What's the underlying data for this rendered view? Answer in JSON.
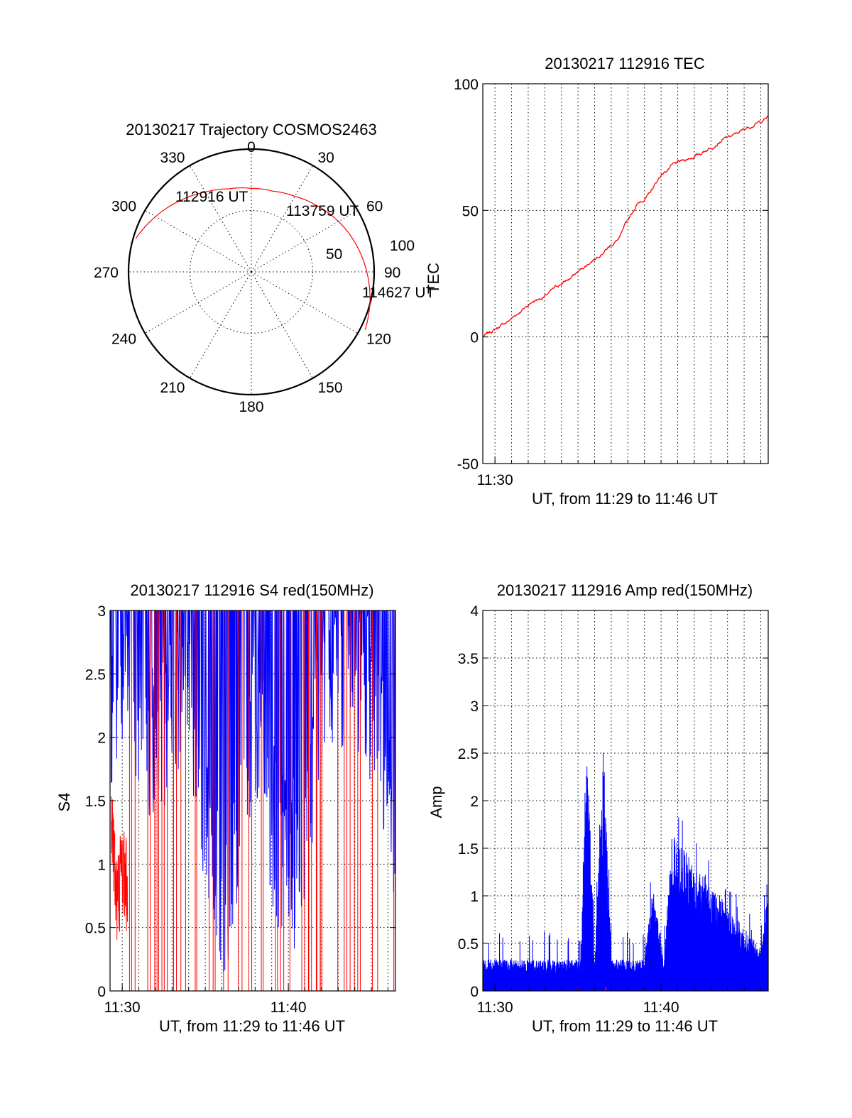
{
  "chart_data": [
    {
      "type": "polar",
      "title": "20130217 Trajectory COSMOS2463",
      "angle_labels": [
        "0",
        "30",
        "60",
        "90",
        "120",
        "150",
        "180",
        "210",
        "240",
        "270",
        "300",
        "330"
      ],
      "radial_labels": [
        "50",
        "100"
      ],
      "radial_ticks": [
        50,
        100
      ],
      "rlim": [
        0,
        100
      ],
      "grid": true,
      "series": [
        {
          "color": "#ff0000",
          "azimuth": [
            286,
            300,
            315,
            330,
            345,
            0,
            15,
            30,
            45,
            60,
            75,
            90,
            105,
            117
          ],
          "zenith": [
            98,
            90,
            82,
            75,
            70,
            68,
            68,
            71,
            76,
            82,
            88,
            94,
            100,
            104
          ]
        }
      ],
      "annotations": [
        {
          "text": "112916 UT",
          "az": 325,
          "r": 110
        },
        {
          "text": "113759 UT",
          "az": 65,
          "r": 120
        },
        {
          "text": "114627 UT",
          "az": 102,
          "r": 124
        }
      ]
    },
    {
      "type": "line",
      "title": "20130217 112916 TEC",
      "xlabel": "UT, from 11:29 to 11:46 UT",
      "ylabel": "TEC",
      "xlim": [
        "11:29:16",
        "11:46:27"
      ],
      "xticks": [
        "11:30"
      ],
      "ylim": [
        -50,
        100
      ],
      "yticks": [
        -50,
        0,
        50,
        100
      ],
      "grid": true,
      "series": [
        {
          "color": "#ff0000",
          "x": [
            "11:29:16",
            "11:30:00",
            "11:30:45",
            "11:31:30",
            "11:32:15",
            "11:33:00",
            "11:33:45",
            "11:34:30",
            "11:35:15",
            "11:36:00",
            "11:36:45",
            "11:37:30",
            "11:38:00",
            "11:38:30",
            "11:39:15",
            "11:40:00",
            "11:40:45",
            "11:41:30",
            "11:42:15",
            "11:43:00",
            "11:43:45",
            "11:44:30",
            "11:45:15",
            "11:46:00",
            "11:46:27"
          ],
          "y": [
            0,
            3,
            6,
            10,
            14,
            16,
            20,
            23,
            27,
            31,
            35,
            39,
            46,
            52,
            56,
            64,
            68,
            70,
            72,
            75,
            78,
            80,
            83,
            85,
            87
          ]
        }
      ]
    },
    {
      "type": "line",
      "title": "20130217 112916 S4 red(150MHz)",
      "xlabel": "UT, from 11:29 to 11:46 UT",
      "ylabel": "S4",
      "xlim": [
        "11:29:16",
        "11:46:27"
      ],
      "xticks": [
        "11:30",
        "11:40"
      ],
      "ylim": [
        0,
        3
      ],
      "yticks": [
        "0",
        "0.5",
        "1",
        "1.5",
        "2",
        "2.5",
        "3"
      ],
      "grid": true,
      "series": [
        {
          "color": "#0000ff",
          "description_points": {
            "x": [
              "11:29:20",
              "11:30:00",
              "11:32:00",
              "11:34:00",
              "11:35:40",
              "11:36:45",
              "11:38:00",
              "11:39:15",
              "11:40:40",
              "11:42:00",
              "11:44:00",
              "11:46:20"
            ],
            "y": [
              2.0,
              2.4,
              1.6,
              2.2,
              0.55,
              0.5,
              2.0,
              0.9,
              0.65,
              2.2,
              2.4,
              1.2
            ]
          }
        },
        {
          "color": "#ff0000",
          "description_points": {
            "x": [
              "11:29:20",
              "11:29:40",
              "11:30:00",
              "11:30:20"
            ],
            "y": [
              1.5,
              0.7,
              1.0,
              0.8
            ]
          }
        }
      ]
    },
    {
      "type": "line",
      "title": "20130217 112916 Amp red(150MHz)",
      "xlabel": "UT, from 11:29 to 11:46 UT",
      "ylabel": "Amp",
      "xlim": [
        "11:29:16",
        "11:46:27"
      ],
      "xticks": [
        "11:30",
        "11:40"
      ],
      "ylim": [
        0,
        4
      ],
      "yticks": [
        "0",
        "0.5",
        "1",
        "1.5",
        "2",
        "2.5",
        "3",
        "3.5",
        "4"
      ],
      "grid": true,
      "series": [
        {
          "color": "#0000ff",
          "description_points": {
            "x": [
              "11:29:16",
              "11:35:10",
              "11:35:30",
              "11:36:00",
              "11:36:30",
              "11:37:00",
              "11:39:00",
              "11:39:30",
              "11:40:10",
              "11:40:40",
              "11:46:00",
              "11:46:27"
            ],
            "y": [
              0.3,
              0.3,
              2.5,
              0.3,
              2.4,
              0.3,
              0.3,
              1.0,
              0.3,
              1.5,
              0.4,
              1.0
            ]
          }
        }
      ]
    }
  ]
}
